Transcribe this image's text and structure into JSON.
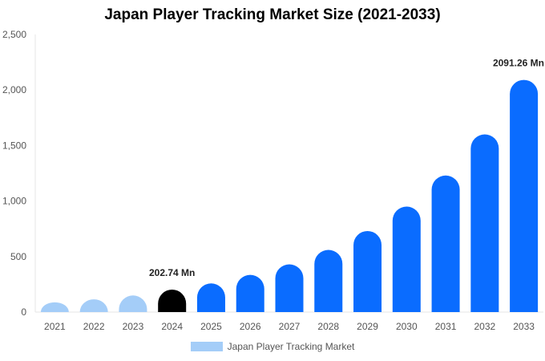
{
  "chart_data": {
    "type": "bar",
    "title": "Japan Player Tracking Market Size (2021-2033)",
    "categories": [
      "2021",
      "2022",
      "2023",
      "2024",
      "2025",
      "2026",
      "2027",
      "2028",
      "2029",
      "2030",
      "2031",
      "2032",
      "2033"
    ],
    "series": [
      {
        "name": "Japan Player Tracking Market",
        "values": [
          88,
          115,
          150,
          202.74,
          258,
          335,
          430,
          560,
          730,
          950,
          1230,
          1600,
          2091.26
        ]
      }
    ],
    "ylim": [
      0,
      2500
    ],
    "yticks": [
      "0",
      "500",
      "1,000",
      "1,500",
      "2,000",
      "2,500"
    ],
    "ytick_values": [
      0,
      500,
      1000,
      1500,
      2000,
      2500
    ],
    "annotations": [
      {
        "category": "2024",
        "text": "202.74 Mn"
      },
      {
        "category": "2033",
        "text": "2091.26 Mn"
      }
    ],
    "colors": {
      "historical": "#a4cdf8",
      "base_year": "#000000",
      "forecast": "#0a6cff",
      "legend": "#a4cdf8"
    },
    "grid": false,
    "legend_position": "bottom"
  }
}
